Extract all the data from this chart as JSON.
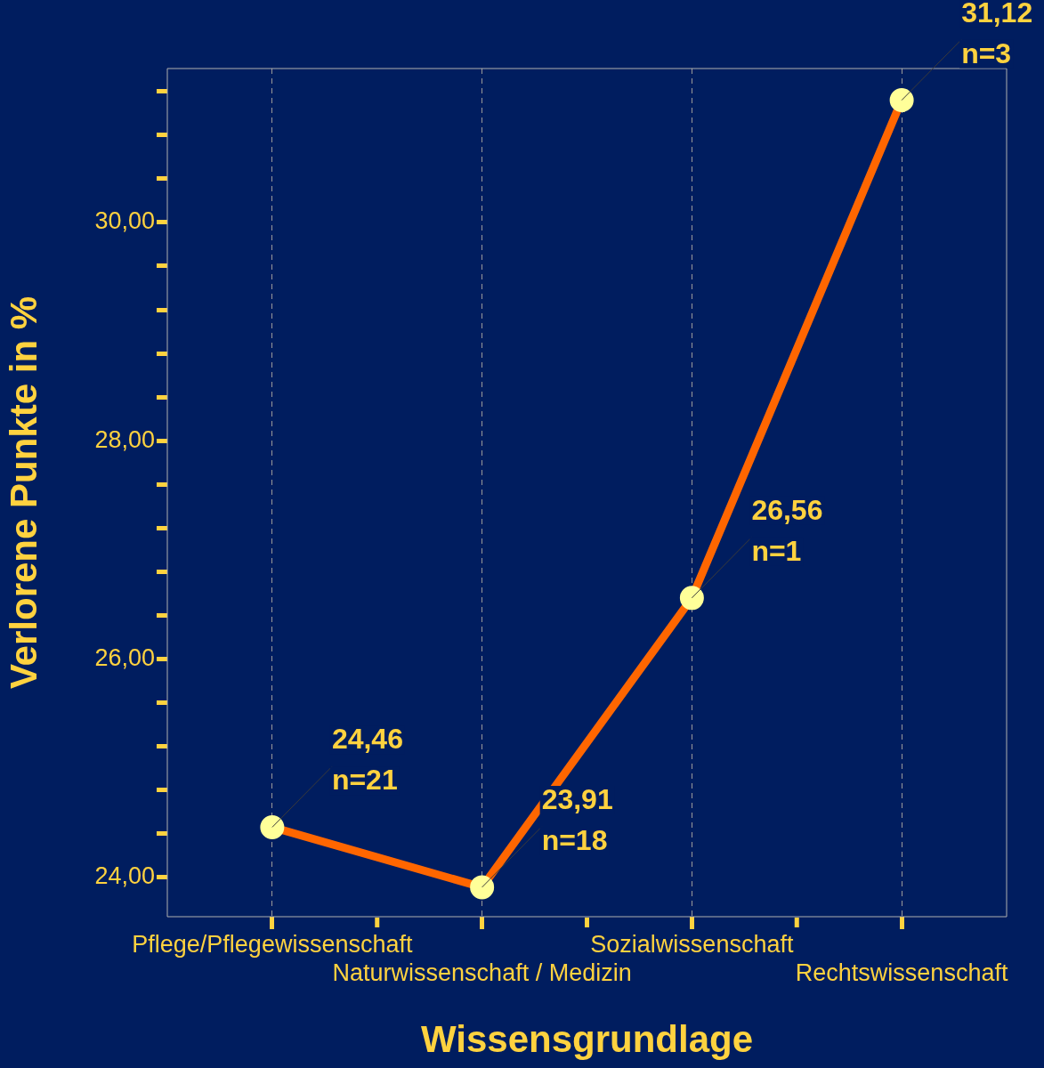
{
  "chart_data": {
    "type": "line",
    "xlabel": "Wissensgrundlage",
    "ylabel": "Verlorene Punkte in %",
    "categories": [
      "Pflege/Pflegewissenschaft",
      "Naturwissenschaft / Medizin",
      "Sozialwissenschaft",
      "Rechtswissenschaft"
    ],
    "series": [
      {
        "color": "#ff6600",
        "values": [
          24.46,
          23.91,
          26.56,
          31.12
        ]
      }
    ],
    "value_labels": [
      "24,46\nn=21",
      "23,91\nn=18",
      "26,56\nn=1",
      "31,12\nn=3"
    ],
    "ylim": [
      23.64,
      31.41
    ],
    "yticks": [
      {
        "value": 24,
        "label": "24,00"
      },
      {
        "value": 24.4,
        "label": null
      },
      {
        "value": 24.8,
        "label": null
      },
      {
        "value": 25.2,
        "label": null
      },
      {
        "value": 25.6,
        "label": null
      },
      {
        "value": 26,
        "label": "26,00"
      },
      {
        "value": 26.4,
        "label": null
      },
      {
        "value": 26.8,
        "label": null
      },
      {
        "value": 27.2,
        "label": null
      },
      {
        "value": 27.6,
        "label": null
      },
      {
        "value": 28,
        "label": "28,00"
      },
      {
        "value": 28.4,
        "label": null
      },
      {
        "value": 28.8,
        "label": null
      },
      {
        "value": 29.2,
        "label": null
      },
      {
        "value": 29.6,
        "label": null
      },
      {
        "value": 30,
        "label": "30,00"
      },
      {
        "value": 30.4,
        "label": null
      },
      {
        "value": 30.8,
        "label": null
      },
      {
        "value": 31.2,
        "label": null
      }
    ],
    "grid": "x",
    "marker": "circle",
    "line_style": "solid",
    "legend": false
  }
}
